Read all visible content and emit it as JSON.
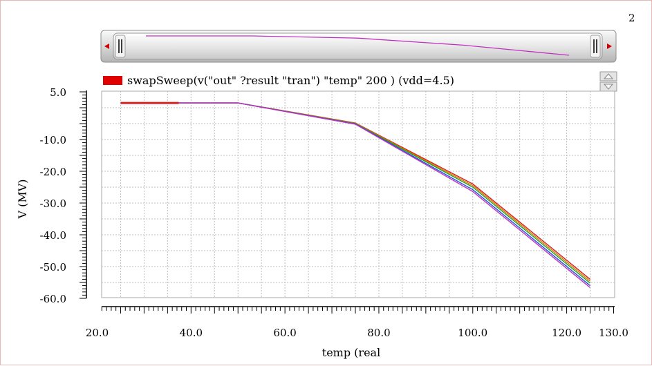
{
  "page_number": "2",
  "legend": {
    "label": "swapSweep(v(\"out\" ?result \"tran\") \"temp\" 200 ) (vdd=4.5)",
    "color": "#e00000"
  },
  "icons": {
    "scroll_left": "triangle-left-icon",
    "scroll_right": "triangle-right-icon",
    "handle_left": "grip-icon",
    "handle_right": "grip-icon",
    "stack_up": "triangle-up-icon",
    "stack_down": "triangle-down-icon"
  },
  "chart_data": {
    "type": "line",
    "xlabel": "temp (real",
    "ylabel": "V (MV)",
    "xlim": [
      20,
      130
    ],
    "ylim": [
      -60,
      5
    ],
    "xticks": [
      {
        "value": 20,
        "label": "20.0"
      },
      {
        "value": 40,
        "label": "40.0"
      },
      {
        "value": 60,
        "label": "60.0"
      },
      {
        "value": 80,
        "label": "80.0"
      },
      {
        "value": 100,
        "label": "100.0"
      },
      {
        "value": 120,
        "label": "120.0"
      },
      {
        "value": 130,
        "label": "130.0"
      }
    ],
    "yticks": [
      {
        "value": 5,
        "label": "5.0"
      },
      {
        "value": -10,
        "label": "-10.0"
      },
      {
        "value": -20,
        "label": "-20.0"
      },
      {
        "value": -30,
        "label": "-30.0"
      },
      {
        "value": -40,
        "label": "-40.0"
      },
      {
        "value": -50,
        "label": "-50.0"
      },
      {
        "value": -60,
        "label": "-60.0"
      }
    ],
    "grid": true,
    "legend_position": "top-left",
    "series": [
      {
        "color": "#d42020",
        "x": [
          25,
          50,
          75,
          100,
          125
        ],
        "y": [
          1.5,
          1.5,
          -4.8,
          -24.0,
          -54.0
        ]
      },
      {
        "color": "#e07800",
        "x": [
          25,
          50,
          75,
          100,
          125
        ],
        "y": [
          1.5,
          1.5,
          -4.9,
          -24.5,
          -54.6
        ]
      },
      {
        "color": "#20a020",
        "x": [
          25,
          50,
          75,
          100,
          125
        ],
        "y": [
          1.5,
          1.5,
          -5.0,
          -25.0,
          -55.2
        ]
      },
      {
        "color": "#2050e0",
        "x": [
          25,
          50,
          75,
          100,
          125
        ],
        "y": [
          1.5,
          1.5,
          -5.1,
          -25.8,
          -56.0
        ]
      },
      {
        "color": "#c030c0",
        "x": [
          25,
          50,
          75,
          100,
          125
        ],
        "y": [
          1.5,
          1.5,
          -5.2,
          -26.4,
          -56.6
        ]
      }
    ]
  }
}
